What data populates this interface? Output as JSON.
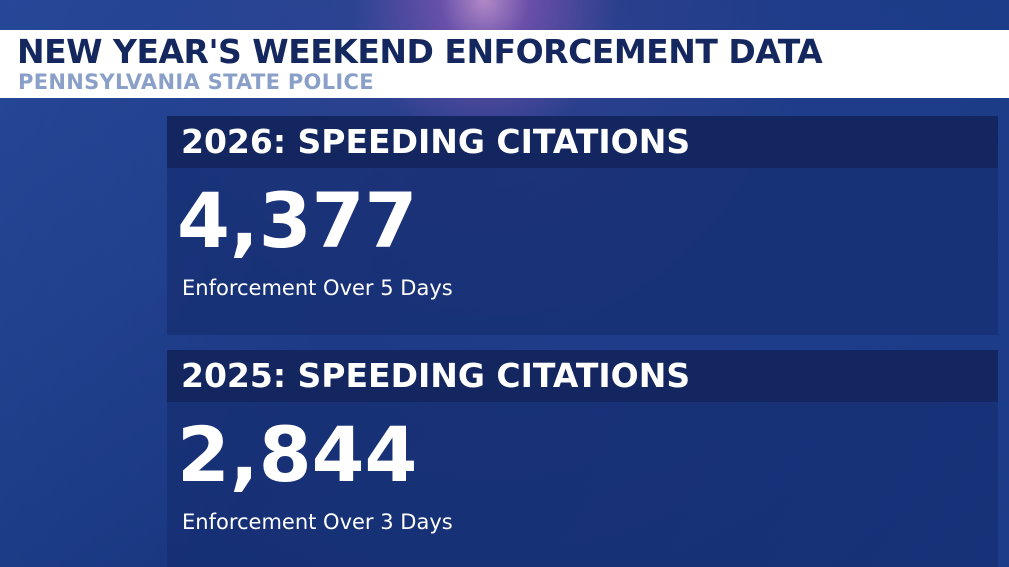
{
  "header": {
    "title": "NEW YEAR'S WEEKEND ENFORCEMENT DATA",
    "subtitle": "PENNSYLVANIA STATE POLICE"
  },
  "panels": [
    {
      "heading": "2026: SPEEDING CITATIONS",
      "value": "4,377",
      "caption": "Enforcement Over 5 Days"
    },
    {
      "heading": "2025: SPEEDING CITATIONS",
      "value": "2,844",
      "caption": "Enforcement Over 3 Days"
    }
  ]
}
